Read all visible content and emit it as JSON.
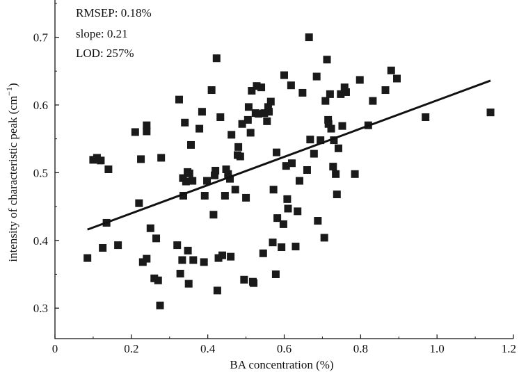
{
  "chart_data": {
    "type": "scatter",
    "title": "",
    "xlabel": "BA concentration (%)",
    "ylabel": "intensity of characteristic peak (cm",
    "ylabel_sup": "−1",
    "ylabel_tail": ")",
    "xlim": [
      0,
      1.2
    ],
    "ylim": [
      0.255,
      0.755
    ],
    "x_ticks": [
      0,
      0.2,
      0.4,
      0.6,
      0.8,
      1.0,
      1.2
    ],
    "x_tick_labels": [
      "0",
      "0.2",
      "0.4",
      "0.6",
      "0.8",
      "1.0",
      "1.2"
    ],
    "y_ticks": [
      0.3,
      0.4,
      0.5,
      0.6,
      0.7
    ],
    "y_tick_labels": [
      "0.3",
      "0.4",
      "0.5",
      "0.6",
      "0.7"
    ],
    "grid": false,
    "annotations": [
      "RMSEP: 0.18%",
      "slope: 0.21",
      "LOD: 257%"
    ],
    "marker": "square",
    "marker_color": "#1a1a1a",
    "fit_line": {
      "x": [
        0.085,
        1.14
      ],
      "y": [
        0.416,
        0.636
      ]
    },
    "points": [
      [
        0.085,
        0.374
      ],
      [
        0.1,
        0.519
      ],
      [
        0.11,
        0.522
      ],
      [
        0.12,
        0.518
      ],
      [
        0.125,
        0.389
      ],
      [
        0.135,
        0.426
      ],
      [
        0.14,
        0.505
      ],
      [
        0.165,
        0.393
      ],
      [
        0.21,
        0.56
      ],
      [
        0.22,
        0.455
      ],
      [
        0.225,
        0.52
      ],
      [
        0.23,
        0.368
      ],
      [
        0.24,
        0.57
      ],
      [
        0.24,
        0.561
      ],
      [
        0.24,
        0.373
      ],
      [
        0.25,
        0.418
      ],
      [
        0.26,
        0.344
      ],
      [
        0.265,
        0.403
      ],
      [
        0.27,
        0.341
      ],
      [
        0.275,
        0.304
      ],
      [
        0.278,
        0.522
      ],
      [
        0.32,
        0.393
      ],
      [
        0.325,
        0.608
      ],
      [
        0.328,
        0.351
      ],
      [
        0.333,
        0.371
      ],
      [
        0.335,
        0.492
      ],
      [
        0.336,
        0.466
      ],
      [
        0.34,
        0.574
      ],
      [
        0.343,
        0.487
      ],
      [
        0.347,
        0.501
      ],
      [
        0.348,
        0.385
      ],
      [
        0.35,
        0.336
      ],
      [
        0.352,
        0.499
      ],
      [
        0.356,
        0.541
      ],
      [
        0.36,
        0.488
      ],
      [
        0.362,
        0.371
      ],
      [
        0.378,
        0.565
      ],
      [
        0.385,
        0.59
      ],
      [
        0.39,
        0.368
      ],
      [
        0.392,
        0.466
      ],
      [
        0.398,
        0.488
      ],
      [
        0.41,
        0.622
      ],
      [
        0.415,
        0.438
      ],
      [
        0.418,
        0.496
      ],
      [
        0.42,
        0.503
      ],
      [
        0.423,
        0.669
      ],
      [
        0.425,
        0.326
      ],
      [
        0.428,
        0.374
      ],
      [
        0.433,
        0.582
      ],
      [
        0.438,
        0.378
      ],
      [
        0.445,
        0.466
      ],
      [
        0.448,
        0.505
      ],
      [
        0.453,
        0.498
      ],
      [
        0.458,
        0.491
      ],
      [
        0.46,
        0.376
      ],
      [
        0.462,
        0.556
      ],
      [
        0.472,
        0.475
      ],
      [
        0.478,
        0.526
      ],
      [
        0.48,
        0.538
      ],
      [
        0.485,
        0.524
      ],
      [
        0.49,
        0.572
      ],
      [
        0.495,
        0.342
      ],
      [
        0.5,
        0.463
      ],
      [
        0.505,
        0.578
      ],
      [
        0.507,
        0.597
      ],
      [
        0.512,
        0.559
      ],
      [
        0.515,
        0.621
      ],
      [
        0.518,
        0.339
      ],
      [
        0.52,
        0.337
      ],
      [
        0.525,
        0.588
      ],
      [
        0.528,
        0.628
      ],
      [
        0.533,
        0.587
      ],
      [
        0.54,
        0.626
      ],
      [
        0.545,
        0.381
      ],
      [
        0.548,
        0.588
      ],
      [
        0.555,
        0.576
      ],
      [
        0.558,
        0.597
      ],
      [
        0.56,
        0.59
      ],
      [
        0.565,
        0.605
      ],
      [
        0.57,
        0.397
      ],
      [
        0.572,
        0.475
      ],
      [
        0.578,
        0.35
      ],
      [
        0.58,
        0.53
      ],
      [
        0.582,
        0.433
      ],
      [
        0.593,
        0.39
      ],
      [
        0.598,
        0.424
      ],
      [
        0.6,
        0.644
      ],
      [
        0.605,
        0.51
      ],
      [
        0.608,
        0.461
      ],
      [
        0.61,
        0.447
      ],
      [
        0.618,
        0.629
      ],
      [
        0.62,
        0.514
      ],
      [
        0.63,
        0.391
      ],
      [
        0.635,
        0.443
      ],
      [
        0.64,
        0.488
      ],
      [
        0.648,
        0.618
      ],
      [
        0.66,
        0.504
      ],
      [
        0.665,
        0.7
      ],
      [
        0.668,
        0.549
      ],
      [
        0.678,
        0.528
      ],
      [
        0.685,
        0.642
      ],
      [
        0.688,
        0.429
      ],
      [
        0.695,
        0.548
      ],
      [
        0.705,
        0.404
      ],
      [
        0.708,
        0.606
      ],
      [
        0.712,
        0.667
      ],
      [
        0.715,
        0.578
      ],
      [
        0.716,
        0.572
      ],
      [
        0.72,
        0.616
      ],
      [
        0.723,
        0.565
      ],
      [
        0.728,
        0.509
      ],
      [
        0.73,
        0.548
      ],
      [
        0.735,
        0.498
      ],
      [
        0.738,
        0.468
      ],
      [
        0.742,
        0.536
      ],
      [
        0.748,
        0.616
      ],
      [
        0.752,
        0.569
      ],
      [
        0.758,
        0.626
      ],
      [
        0.762,
        0.619
      ],
      [
        0.785,
        0.498
      ],
      [
        0.798,
        0.637
      ],
      [
        0.82,
        0.57
      ],
      [
        0.832,
        0.606
      ],
      [
        0.865,
        0.622
      ],
      [
        0.88,
        0.651
      ],
      [
        0.895,
        0.639
      ],
      [
        0.97,
        0.582
      ],
      [
        1.14,
        0.589
      ]
    ]
  }
}
